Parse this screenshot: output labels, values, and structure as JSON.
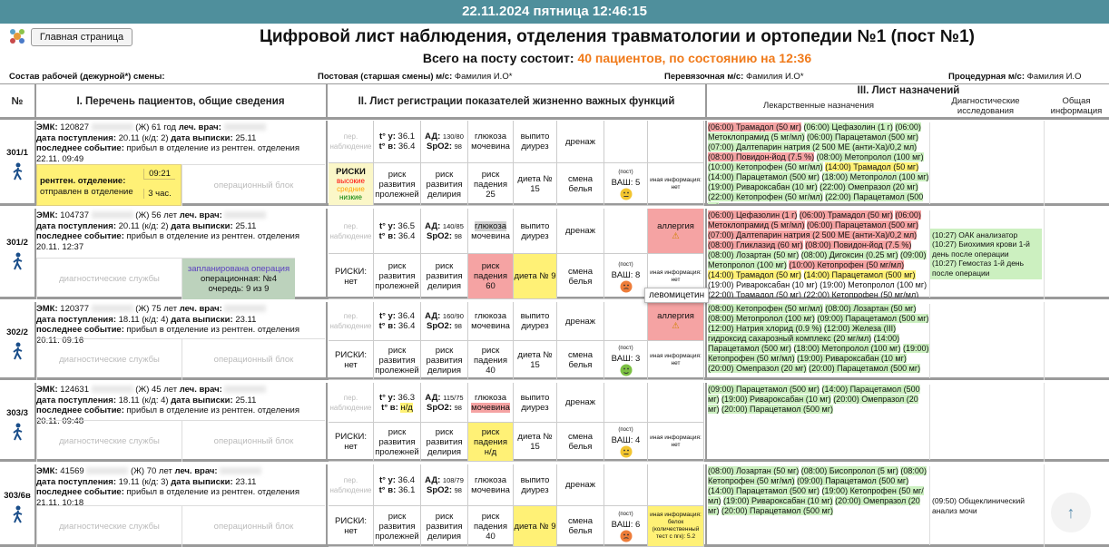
{
  "header": {
    "datetime": "22.11.2024 пятница 12:46:15",
    "home_button": "Главная страница",
    "title": "Цифровой лист наблюдения, отделения травматологии и ортопедии №1 (пост №1)",
    "total_label": "Всего на посту состоит:",
    "total_value": "40 пациентов, по состоянию на 12:36"
  },
  "staff": {
    "label": "Состав рабочей (дежурной*) смены:",
    "items": [
      {
        "role": "Постовая (старшая смены) м/с:",
        "name": "Фамилия И.О*"
      },
      {
        "role": "Перевязочная м/с:",
        "name": "Фамилия И.О*"
      },
      {
        "role": "Процедурная м/с:",
        "name": "Фамилия И.О"
      }
    ]
  },
  "columns": {
    "number": "№",
    "section1": "I. Перечень пациентов, общие сведения",
    "section2": "II. Лист регистрации показателей жизненно важных функций",
    "section3": "III. Лист назначений",
    "drugs": "Лекарственные назначения",
    "diagnostics": "Диагностические исследования",
    "general": "Общая информация"
  },
  "labels": {
    "emk": "ЭМК:",
    "doctor": "леч. врач:",
    "admitted": "дата поступления:",
    "discharge": "дата выписки:",
    "event": "последнее событие:",
    "observation": "пер. наблюдение",
    "temp_morning": "t° у:",
    "temp_evening": "t° в:",
    "bp": "АД:",
    "spo2": "SpO2:",
    "glucose": "глюкоза",
    "urea": "мочевина",
    "drunk": "выпито",
    "diuresis": "диурез",
    "drain": "дренаж",
    "pressure_ulcer": "риск развития пролежней",
    "delirium": "риск развития делирия",
    "fall": "риск падения",
    "diet": "диета №",
    "linen": "смена белья",
    "vas": "ВАШ:",
    "post": "(пост)",
    "other": "иная информация:",
    "allergy": "аллергия",
    "diag_services": "диагностические службы",
    "op_block": "операционный блок"
  },
  "patients": [
    {
      "bed": "301/1",
      "emk": "120827",
      "info": "(Ж) 61 год",
      "admitted": "20.11 (к/д: 2)",
      "discharge": "25.11",
      "event": "прибыл в отделение из рентген. отделения 22.11. 09:49",
      "box1": {
        "title": "рентген. отделение:",
        "text": "отправлен в отделение",
        "time": "09:21",
        "duration": "3 час.",
        "tone": "yellow"
      },
      "box2": null,
      "t_morning": 36.1,
      "t_evening": 36.4,
      "t_evening_tone": null,
      "bp": "130/80",
      "spo2": 98,
      "glucose_tone": null,
      "urea_tone": null,
      "risks": {
        "label": "РИСКИ",
        "levels": [
          {
            "text": "высокие",
            "color": "red"
          },
          {
            "text": "средние",
            "color": "orange"
          },
          {
            "text": "низкие",
            "color": "green"
          }
        ]
      },
      "fall": 25,
      "fall_tone": null,
      "diet": 15,
      "diet_tone": null,
      "vas": 5,
      "vas_tone": "yellow",
      "allergy": null,
      "allergen": null,
      "other": "нет",
      "other_tone": null,
      "drugs": [
        {
          "text": "(06:00) Трамадол (50 мг)",
          "tone": "red"
        },
        {
          "text": "(06:00) Цефазолин (1 г)",
          "tone": "green"
        },
        {
          "text": "(06:00) Метоклопрамид (5 мг/мл)",
          "tone": "green"
        },
        {
          "text": "(06:00) Парацетамол (500 мг)",
          "tone": "green"
        },
        {
          "text": "(07:00) Далтепарин натрия (2 500 МЕ (анти-Xa)/0,2 мл)",
          "tone": "green"
        },
        {
          "text": "(08:00) Повидон-йод (7.5 %)",
          "tone": "red"
        },
        {
          "text": "(08:00) Метопролол (100 мг)",
          "tone": "green"
        },
        {
          "text": "(10:00) Кетопрофен (50 мг/мл)",
          "tone": "green"
        },
        {
          "text": "(14:00) Трамадол (50 мг)",
          "tone": "yellow"
        },
        {
          "text": "(14:00) Парацетамол (500 мг)",
          "tone": "green"
        },
        {
          "text": "(18:00) Метопролол (100 мг)",
          "tone": "green"
        },
        {
          "text": "(19:00) Ривароксабан (10 мг)",
          "tone": "green"
        },
        {
          "text": "(22:00) Омепразол (20 мг)",
          "tone": "green"
        },
        {
          "text": "(22:00) Кетопрофен (50 мг/мл)",
          "tone": "green"
        },
        {
          "text": "(22:00) Парацетамол (500 мг)",
          "tone": "green"
        }
      ],
      "diagnostics": []
    },
    {
      "bed": "301/2",
      "emk": "104737",
      "info": "(Ж) 56 лет",
      "admitted": "20.11 (к/д: 2)",
      "discharge": "25.11",
      "event": "прибыл в отделение из рентген. отделения 20.11. 12:37",
      "box1": null,
      "box2": {
        "title": "запланирована операция",
        "lines": [
          "операционная: №4",
          "очередь: 9 из 9"
        ],
        "tone": "sage"
      },
      "t_morning": 36.5,
      "t_evening": 36.4,
      "t_evening_tone": null,
      "bp": "140/85",
      "spo2": 98,
      "glucose_tone": "grey",
      "urea_tone": null,
      "risks": {
        "label": "РИСКИ: нет",
        "levels": []
      },
      "fall": 60,
      "fall_tone": "red",
      "diet": 9,
      "diet_tone": "yellow",
      "vas": 8,
      "vas_tone": "orange",
      "allergy": "⚠",
      "allergen": "левомицетин",
      "other": "нет",
      "other_tone": null,
      "drugs": [
        {
          "text": "(06:00) Цефазолин (1 г)",
          "tone": "red"
        },
        {
          "text": "(06:00) Трамадол (50 мг)",
          "tone": "red"
        },
        {
          "text": "(06:00) Метоклопрамид (5 мг/мл)",
          "tone": "red"
        },
        {
          "text": "(06:00) Парацетамол (500 мг)",
          "tone": "red"
        },
        {
          "text": "(07:00) Далтепарин натрия (2 500 МЕ (анти-Xa)/0,2 мл)",
          "tone": "red"
        },
        {
          "text": "(08:00) Гликлазид (60 мг)",
          "tone": "red"
        },
        {
          "text": "(08:00) Повидон-йод (7.5 %)",
          "tone": "red"
        },
        {
          "text": "(08:00) Лозартан (50 мг)",
          "tone": "green"
        },
        {
          "text": "(08:00) Дигоксин (0.25 мг)",
          "tone": "green"
        },
        {
          "text": "(09:00) Метопролол (100 мг)",
          "tone": "green"
        },
        {
          "text": "(10:00) Кетопрофен (50 мг/мл)",
          "tone": "red"
        },
        {
          "text": "(14:00) Трамадол (50 мг)",
          "tone": "yellow"
        },
        {
          "text": "(14:00) Парацетамол (500 мг)",
          "tone": "yellow"
        },
        {
          "text": "(19:00) Ривароксабан (10 мг)",
          "tone": null
        },
        {
          "text": "(19:00) Метопролол (100 мг)",
          "tone": null
        },
        {
          "text": "(22:00) Трамадол (50 мг)",
          "tone": null
        },
        {
          "text": "(22:00) Кетопрофен (50 мг/мл)",
          "tone": null
        },
        {
          "text": "(22:00) Парацетамол (500 мг)",
          "tone": null
        },
        {
          "text": "(22:00) Омепразол (20 мг)",
          "tone": "green"
        }
      ],
      "diagnostics": [
        {
          "text": "(10:27) ОАК анализатор",
          "tone": "green"
        },
        {
          "text": "(10:27) Биохимия крови 1-й день после операции",
          "tone": "green"
        },
        {
          "text": "(10:27) Гемостаз 1-й день после операции",
          "tone": "green"
        }
      ]
    },
    {
      "bed": "302/2",
      "emk": "120377",
      "info": "(Ж) 75 лет",
      "admitted": "18.11 (к/д: 4)",
      "discharge": "23.11",
      "event": "прибыл в отделение из рентген. отделения 20.11. 09:16",
      "box1": null,
      "box2": null,
      "t_morning": 36.4,
      "t_evening": 36.4,
      "t_evening_tone": null,
      "bp": "160/90",
      "spo2": 98,
      "glucose_tone": null,
      "urea_tone": null,
      "risks": {
        "label": "РИСКИ: нет",
        "levels": []
      },
      "fall": 40,
      "fall_tone": null,
      "diet": 15,
      "diet_tone": null,
      "vas": 3,
      "vas_tone": "green",
      "allergy": "⚠",
      "allergen": null,
      "other": "нет",
      "other_tone": null,
      "drugs": [
        {
          "text": "(08:00) Кетопрофен (50 мг/мл)",
          "tone": "green"
        },
        {
          "text": "(08:00) Лозартан (50 мг)",
          "tone": "green"
        },
        {
          "text": "(08:00) Метопролол (100 мг)",
          "tone": "green"
        },
        {
          "text": "(09:00) Парацетамол (500 мг)",
          "tone": "green"
        },
        {
          "text": "(12:00) Натрия хлорид (0.9 %)",
          "tone": "green"
        },
        {
          "text": "(12:00) Железа (III) гидроксид сахарозный комплекс (20 мг/мл)",
          "tone": "green"
        },
        {
          "text": "(14:00) Парацетамол (500 мг)",
          "tone": "green"
        },
        {
          "text": "(18:00) Метопролол (100 мг)",
          "tone": "green"
        },
        {
          "text": "(19:00) Кетопрофен (50 мг/мл)",
          "tone": "green"
        },
        {
          "text": "(19:00) Ривароксабан (10 мг)",
          "tone": "green"
        },
        {
          "text": "(20:00) Омепразол (20 мг)",
          "tone": "green"
        },
        {
          "text": "(20:00) Парацетамол (500 мг)",
          "tone": "green"
        }
      ],
      "diagnostics": []
    },
    {
      "bed": "303/3",
      "emk": "124631",
      "info": "(Ж) 45 лет",
      "admitted": "18.11 (к/д: 4)",
      "discharge": "25.11",
      "event": "прибыл в отделение из рентген. отделения 20.11. 09:48",
      "box1": null,
      "box2": null,
      "t_morning": 36.3,
      "t_evening": "н/д",
      "t_evening_tone": "yellow",
      "bp": "115/75",
      "spo2": 98,
      "glucose_tone": null,
      "urea_tone": "red",
      "risks": {
        "label": "РИСКИ: нет",
        "levels": []
      },
      "fall": "н/д",
      "fall_tone": "yellow",
      "diet": 15,
      "diet_tone": null,
      "vas": 4,
      "vas_tone": "yellow",
      "allergy": null,
      "allergen": null,
      "other": "нет",
      "other_tone": null,
      "drugs": [
        {
          "text": "(09:00) Парацетамол (500 мг)",
          "tone": "green"
        },
        {
          "text": "(14:00) Парацетамол (500 мг)",
          "tone": "green"
        },
        {
          "text": "(19:00) Ривароксабан (10 мг)",
          "tone": "green"
        },
        {
          "text": "(20:00) Омепразол (20 мг)",
          "tone": "green"
        },
        {
          "text": "(20:00) Парацетамол (500 мг)",
          "tone": "green"
        }
      ],
      "diagnostics": []
    },
    {
      "bed": "303/6в",
      "emk": "41569",
      "info": "(Ж) 70 лет",
      "admitted": "19.11 (к/д: 3)",
      "discharge": "23.11",
      "event": "прибыл в отделение из рентген. отделения 21.11. 10:18",
      "box1": null,
      "box2": null,
      "t_morning": 36.4,
      "t_evening": 36.1,
      "t_evening_tone": null,
      "bp": "108/79",
      "spo2": 98,
      "glucose_tone": null,
      "urea_tone": null,
      "risks": {
        "label": "РИСКИ: нет",
        "levels": []
      },
      "fall": 40,
      "fall_tone": null,
      "diet": 9,
      "diet_tone": "yellow",
      "vas": 6,
      "vas_tone": "orange",
      "allergy": null,
      "allergen": null,
      "other": "белок (количественный тест с пгк): 5.2",
      "other_tone": "yellow",
      "drugs": [
        {
          "text": "(08:00) Лозартан (50 мг)",
          "tone": "green"
        },
        {
          "text": "(08:00) Бисопролол (5 мг)",
          "tone": "green"
        },
        {
          "text": "(08:00) Кетопрофен (50 мг/мл)",
          "tone": "green"
        },
        {
          "text": "(09:00) Парацетамол (500 мг)",
          "tone": "green"
        },
        {
          "text": "(14:00) Парацетамол (500 мг)",
          "tone": "green"
        },
        {
          "text": "(19:00) Кетопрофен (50 мг/мл)",
          "tone": "green"
        },
        {
          "text": "(19:00) Ривароксабан (10 мг)",
          "tone": "green"
        },
        {
          "text": "(20:00) Омепразол (20 мг)",
          "tone": "green"
        },
        {
          "text": "(20:00) Парацетамол (500 мг)",
          "tone": "green"
        }
      ],
      "diagnostics": [
        {
          "text": "(09:50) Общеклинический анализ мочи",
          "tone": null
        }
      ]
    }
  ]
}
